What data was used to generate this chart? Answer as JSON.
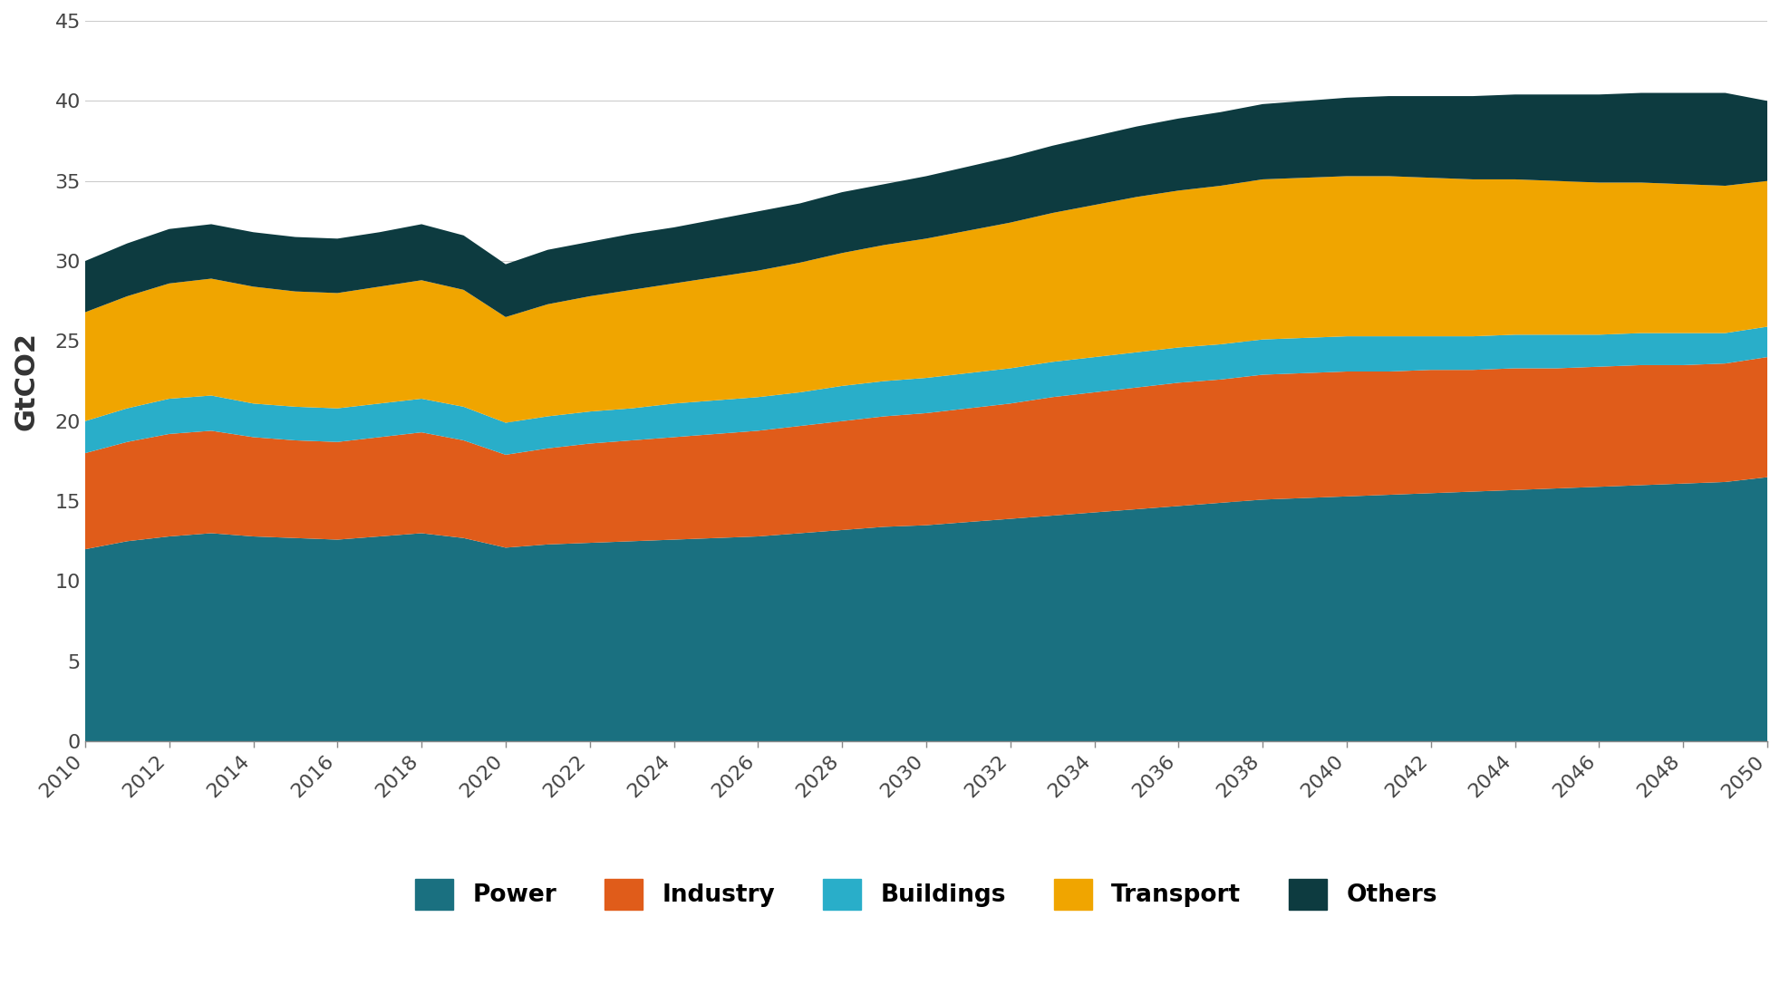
{
  "years": [
    2010,
    2011,
    2012,
    2013,
    2014,
    2015,
    2016,
    2017,
    2018,
    2019,
    2020,
    2021,
    2022,
    2023,
    2024,
    2025,
    2026,
    2027,
    2028,
    2029,
    2030,
    2031,
    2032,
    2033,
    2034,
    2035,
    2036,
    2037,
    2038,
    2039,
    2040,
    2041,
    2042,
    2043,
    2044,
    2045,
    2046,
    2047,
    2048,
    2049,
    2050
  ],
  "power": [
    12.0,
    12.5,
    12.8,
    13.0,
    12.8,
    12.7,
    12.6,
    12.8,
    13.0,
    12.7,
    12.1,
    12.3,
    12.4,
    12.5,
    12.6,
    12.7,
    12.8,
    13.0,
    13.2,
    13.4,
    13.5,
    13.7,
    13.9,
    14.1,
    14.3,
    14.5,
    14.7,
    14.9,
    15.1,
    15.2,
    15.3,
    15.4,
    15.5,
    15.6,
    15.7,
    15.8,
    15.9,
    16.0,
    16.1,
    16.2,
    16.5
  ],
  "industry": [
    6.0,
    6.2,
    6.4,
    6.4,
    6.2,
    6.1,
    6.1,
    6.2,
    6.3,
    6.1,
    5.8,
    6.0,
    6.2,
    6.3,
    6.4,
    6.5,
    6.6,
    6.7,
    6.8,
    6.9,
    7.0,
    7.1,
    7.2,
    7.4,
    7.5,
    7.6,
    7.7,
    7.7,
    7.8,
    7.8,
    7.8,
    7.7,
    7.7,
    7.6,
    7.6,
    7.5,
    7.5,
    7.5,
    7.4,
    7.4,
    7.5
  ],
  "buildings": [
    2.0,
    2.1,
    2.2,
    2.2,
    2.1,
    2.1,
    2.1,
    2.1,
    2.1,
    2.1,
    2.0,
    2.0,
    2.0,
    2.0,
    2.1,
    2.1,
    2.1,
    2.1,
    2.2,
    2.2,
    2.2,
    2.2,
    2.2,
    2.2,
    2.2,
    2.2,
    2.2,
    2.2,
    2.2,
    2.2,
    2.2,
    2.2,
    2.1,
    2.1,
    2.1,
    2.1,
    2.0,
    2.0,
    2.0,
    1.9,
    1.9
  ],
  "transport": [
    6.8,
    7.0,
    7.2,
    7.3,
    7.3,
    7.2,
    7.2,
    7.3,
    7.4,
    7.3,
    6.6,
    7.0,
    7.2,
    7.4,
    7.5,
    7.7,
    7.9,
    8.1,
    8.3,
    8.5,
    8.7,
    8.9,
    9.1,
    9.3,
    9.5,
    9.7,
    9.8,
    9.9,
    10.0,
    10.0,
    10.0,
    10.0,
    9.9,
    9.8,
    9.7,
    9.6,
    9.5,
    9.4,
    9.3,
    9.2,
    9.1
  ],
  "others": [
    3.2,
    3.3,
    3.4,
    3.4,
    3.4,
    3.4,
    3.4,
    3.4,
    3.5,
    3.4,
    3.3,
    3.4,
    3.4,
    3.5,
    3.5,
    3.6,
    3.7,
    3.7,
    3.8,
    3.8,
    3.9,
    4.0,
    4.1,
    4.2,
    4.3,
    4.4,
    4.5,
    4.6,
    4.7,
    4.8,
    4.9,
    5.0,
    5.1,
    5.2,
    5.3,
    5.4,
    5.5,
    5.6,
    5.7,
    5.8,
    5.0
  ],
  "colors": {
    "power": "#1a7080",
    "industry": "#e05c1a",
    "buildings": "#29aec9",
    "transport": "#f0a500",
    "others": "#0d3b40"
  },
  "ylabel": "GtCO2",
  "ylim": [
    0,
    45
  ],
  "yticks": [
    0,
    5,
    10,
    15,
    20,
    25,
    30,
    35,
    40,
    45
  ],
  "xlim": [
    2010,
    2050
  ],
  "xticks": [
    2010,
    2012,
    2014,
    2016,
    2018,
    2020,
    2022,
    2024,
    2026,
    2028,
    2030,
    2032,
    2034,
    2036,
    2038,
    2040,
    2042,
    2044,
    2046,
    2048,
    2050
  ],
  "legend_labels": [
    "Power",
    "Industry",
    "Buildings",
    "Transport",
    "Others"
  ],
  "legend_keys": [
    "power",
    "industry",
    "buildings",
    "transport",
    "others"
  ],
  "background_color": "#ffffff",
  "grid_color": "#cccccc"
}
